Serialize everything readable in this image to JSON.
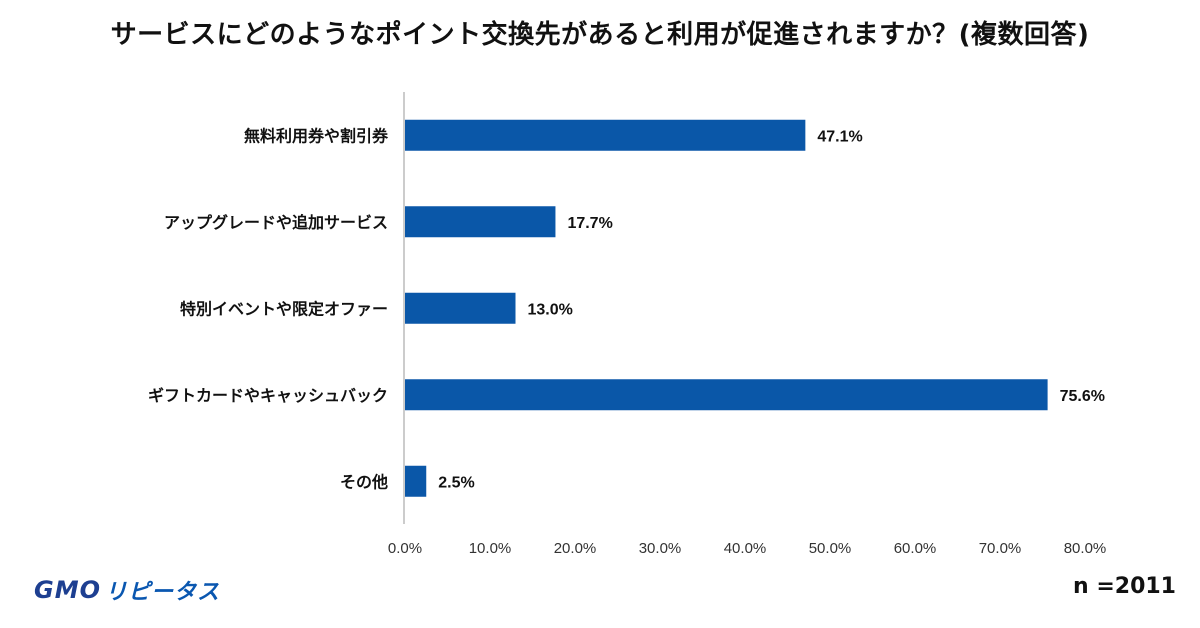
{
  "title": "サービスにどのようなポイント交換先があると利用が促進されますか？(複数回答)",
  "sample_note": "n =2011",
  "logo": {
    "part1": "GMO",
    "part2": "リピータス"
  },
  "colors": {
    "bar": "#0a57a8",
    "axis": "#cccccc",
    "text": "#111111"
  },
  "chart_data": {
    "type": "bar",
    "orientation": "horizontal",
    "categories": [
      "無料利用券や割引券",
      "アップグレードや追加サービス",
      "特別イベントや限定オファー",
      "ギフトカードやキャッシュバック",
      "その他"
    ],
    "values": [
      47.1,
      17.7,
      13.0,
      75.6,
      2.5
    ],
    "value_labels": [
      "47.1%",
      "17.7%",
      "13.0%",
      "75.6%",
      "2.5%"
    ],
    "xlim": [
      0,
      80
    ],
    "xticks": [
      "0.0%",
      "10.0%",
      "20.0%",
      "30.0%",
      "40.0%",
      "50.0%",
      "60.0%",
      "70.0%",
      "80.0%"
    ],
    "grid": false,
    "legend": "none"
  }
}
